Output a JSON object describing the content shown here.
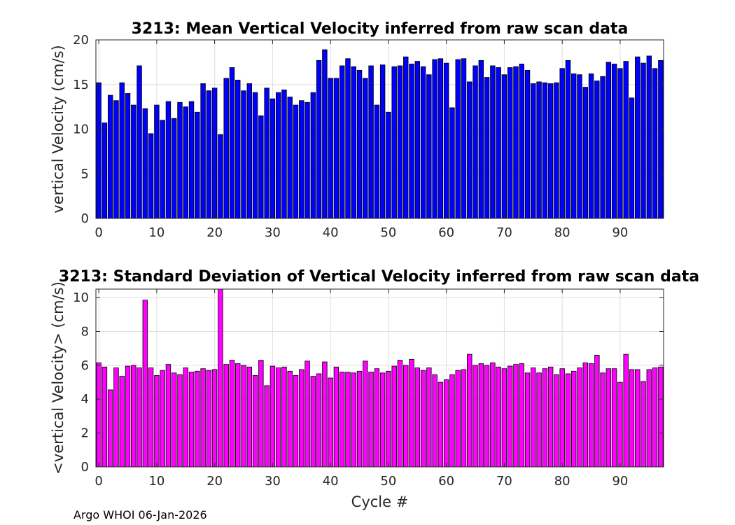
{
  "chart_data": [
    {
      "type": "bar",
      "title": "3213: Mean Vertical Velocity inferred from raw scan data",
      "xlabel": "",
      "ylabel": "vertical Velocity (cm/s)",
      "color": "#0000ff",
      "xlim": [
        -0.5,
        97.5
      ],
      "ylim": [
        0,
        20
      ],
      "xticks": [
        0,
        10,
        20,
        30,
        40,
        50,
        60,
        70,
        80,
        90
      ],
      "yticks": [
        0,
        5,
        10,
        15,
        20
      ],
      "grid": true,
      "x_start": 0,
      "values": [
        15.2,
        10.7,
        13.8,
        13.2,
        15.2,
        14.0,
        12.7,
        17.1,
        12.3,
        9.5,
        12.7,
        11.0,
        13.1,
        11.2,
        13.0,
        12.5,
        13.1,
        11.9,
        15.1,
        14.3,
        14.6,
        9.4,
        15.7,
        16.9,
        15.5,
        14.3,
        15.1,
        14.1,
        11.5,
        14.6,
        13.4,
        14.1,
        14.4,
        13.6,
        12.7,
        13.2,
        13.0,
        14.1,
        17.7,
        18.9,
        15.7,
        15.7,
        17.1,
        17.9,
        17.0,
        16.6,
        15.7,
        17.1,
        12.7,
        17.2,
        11.9,
        17.0,
        17.1,
        18.1,
        17.3,
        17.6,
        17.0,
        16.1,
        17.8,
        17.9,
        17.4,
        12.4,
        17.8,
        17.9,
        15.3,
        17.1,
        17.7,
        15.8,
        17.1,
        16.9,
        16.1,
        16.9,
        17.0,
        17.3,
        16.6,
        15.1,
        15.3,
        15.2,
        15.1,
        15.2,
        16.8,
        17.7,
        16.2,
        16.1,
        14.7,
        16.2,
        15.4,
        15.9,
        17.5,
        17.3,
        16.8,
        17.6,
        13.5,
        18.1,
        17.4,
        18.2,
        16.8,
        17.7
      ]
    },
    {
      "type": "bar",
      "title": "3213: Standard Deviation of Vertical Velocity inferred from raw scan data",
      "xlabel": "Cycle #",
      "ylabel": "<vertical Velocity> (cm/s)",
      "color": "#ff00ff",
      "xlim": [
        -0.5,
        97.5
      ],
      "ylim": [
        0,
        10.5
      ],
      "xticks": [
        0,
        10,
        20,
        30,
        40,
        50,
        60,
        70,
        80,
        90
      ],
      "yticks": [
        0,
        2,
        4,
        6,
        8,
        10
      ],
      "grid": true,
      "x_start": 0,
      "values": [
        6.15,
        5.9,
        4.55,
        5.85,
        5.35,
        5.95,
        6.0,
        5.85,
        9.85,
        5.85,
        5.4,
        5.7,
        6.05,
        5.55,
        5.45,
        5.85,
        5.6,
        5.65,
        5.8,
        5.7,
        5.75,
        10.8,
        6.05,
        6.3,
        6.1,
        6.0,
        5.9,
        5.4,
        6.3,
        4.8,
        5.95,
        5.85,
        5.9,
        5.65,
        5.4,
        5.75,
        6.25,
        5.35,
        5.5,
        6.2,
        5.25,
        5.9,
        5.6,
        5.6,
        5.55,
        5.65,
        6.25,
        5.6,
        5.8,
        5.55,
        5.65,
        5.95,
        6.3,
        6.0,
        6.35,
        5.85,
        5.7,
        5.85,
        5.45,
        5.0,
        5.15,
        5.45,
        5.7,
        5.75,
        6.65,
        6.0,
        6.1,
        6.0,
        6.15,
        5.9,
        5.8,
        5.95,
        6.05,
        6.1,
        5.55,
        5.85,
        5.55,
        5.8,
        5.9,
        5.45,
        5.8,
        5.5,
        5.65,
        5.85,
        6.15,
        6.1,
        6.6,
        5.55,
        5.8,
        5.8,
        5.0,
        6.65,
        5.75,
        5.75,
        5.05,
        5.75,
        5.85,
        5.9
      ]
    }
  ],
  "footer": {
    "text": "Argo WHOI 06-Jan-2026"
  }
}
